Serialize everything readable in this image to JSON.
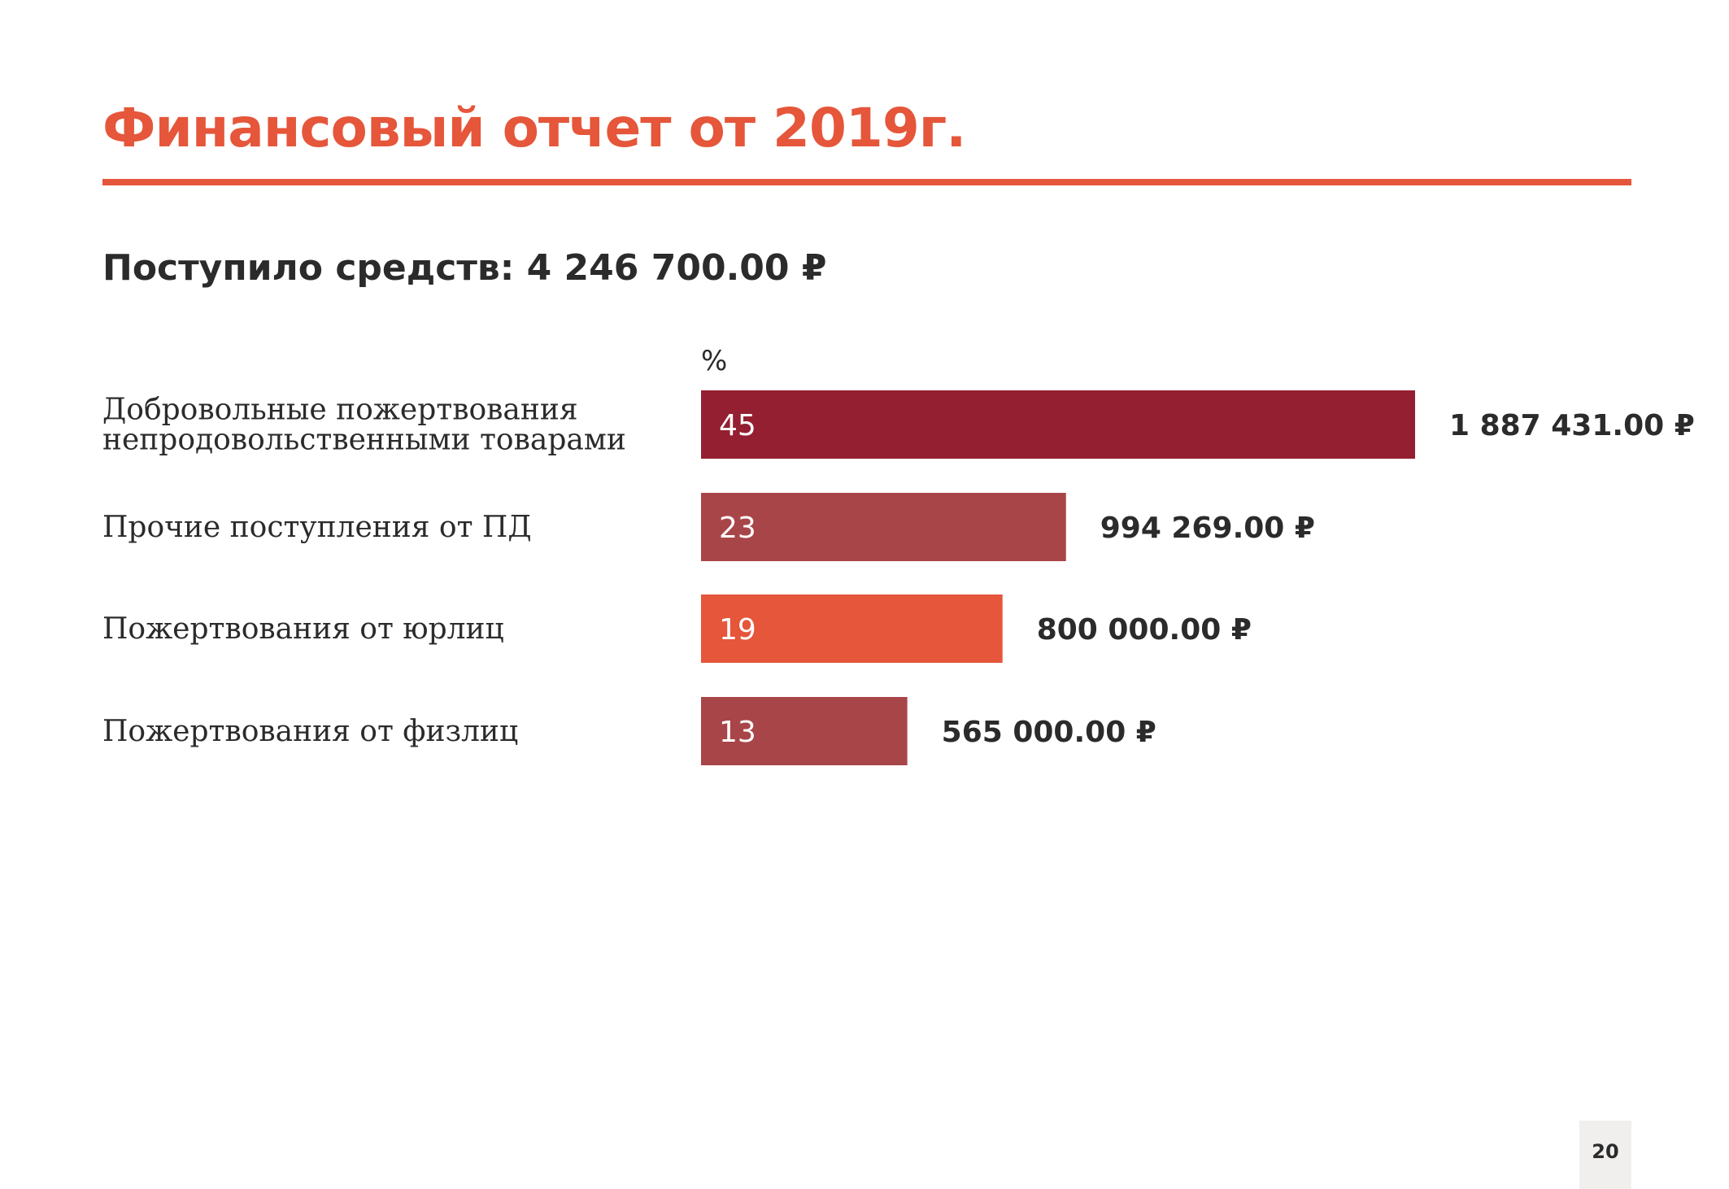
{
  "title": "Финансовый отчет от 2019г.",
  "subtitle": "Поступило средств: 4 246 700.00 ₽",
  "page_number": "20",
  "chart_data": {
    "type": "bar",
    "orientation": "horizontal",
    "unit_label": "%",
    "categories": [
      [
        "Добровольные пожертвования",
        "непродовольственными товарами"
      ],
      [
        "Прочие поступления от ПД"
      ],
      [
        "Пожертвования от юрлиц"
      ],
      [
        "Пожертвования от физлиц"
      ]
    ],
    "values": [
      45,
      23,
      19,
      13
    ],
    "amounts": [
      "1 887 431.00 ₽",
      "994 269.00 ₽",
      "800 000.00 ₽",
      "565 000.00 ₽"
    ],
    "colors": [
      "#931f30",
      "#a84548",
      "#e5563a",
      "#a84548"
    ],
    "xlim": [
      0,
      45
    ],
    "grid": false,
    "legend": "none"
  }
}
